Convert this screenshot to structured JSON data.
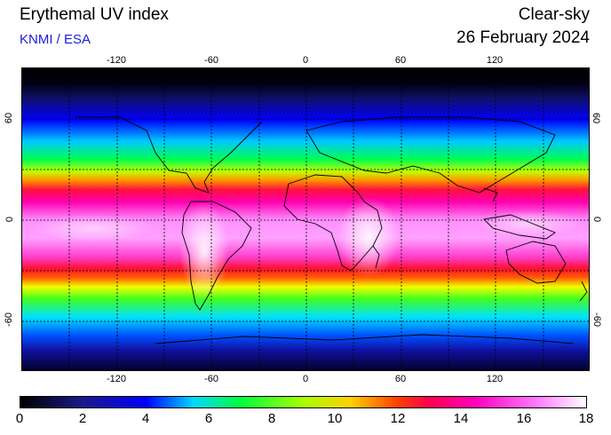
{
  "header": {
    "title": "Erythemal UV index",
    "source": "KNMI / ESA",
    "mode": "Clear-sky",
    "date": "26 February 2024"
  },
  "map": {
    "lon_ticks": [
      "-120",
      "-60",
      "0",
      "60",
      "120"
    ],
    "lat_ticks_left": [
      "60",
      "0",
      "-60"
    ],
    "lat_ticks_right": [
      "60",
      "0",
      "-60"
    ],
    "lon_range": [
      -180,
      180
    ],
    "lat_range": [
      -90,
      90
    ],
    "gridlines": "dotted every 30 degrees"
  },
  "colorbar": {
    "labels": [
      "0",
      "2",
      "4",
      "6",
      "8",
      "10",
      "12",
      "14",
      "16",
      "18"
    ],
    "range": [
      0,
      18
    ],
    "stops": [
      {
        "value": 0,
        "color": "#000000"
      },
      {
        "value": 2,
        "color": "#1a1a8c"
      },
      {
        "value": 4,
        "color": "#0000ff"
      },
      {
        "value": 5.5,
        "color": "#00d8ff"
      },
      {
        "value": 7,
        "color": "#00ff40"
      },
      {
        "value": 9,
        "color": "#a8ff00"
      },
      {
        "value": 10.5,
        "color": "#ffd000"
      },
      {
        "value": 12,
        "color": "#ff4000"
      },
      {
        "value": 13,
        "color": "#ff0050"
      },
      {
        "value": 14.5,
        "color": "#ff00c0"
      },
      {
        "value": 16.5,
        "color": "#ff80ff"
      },
      {
        "value": 18,
        "color": "#ffffff"
      }
    ]
  }
}
